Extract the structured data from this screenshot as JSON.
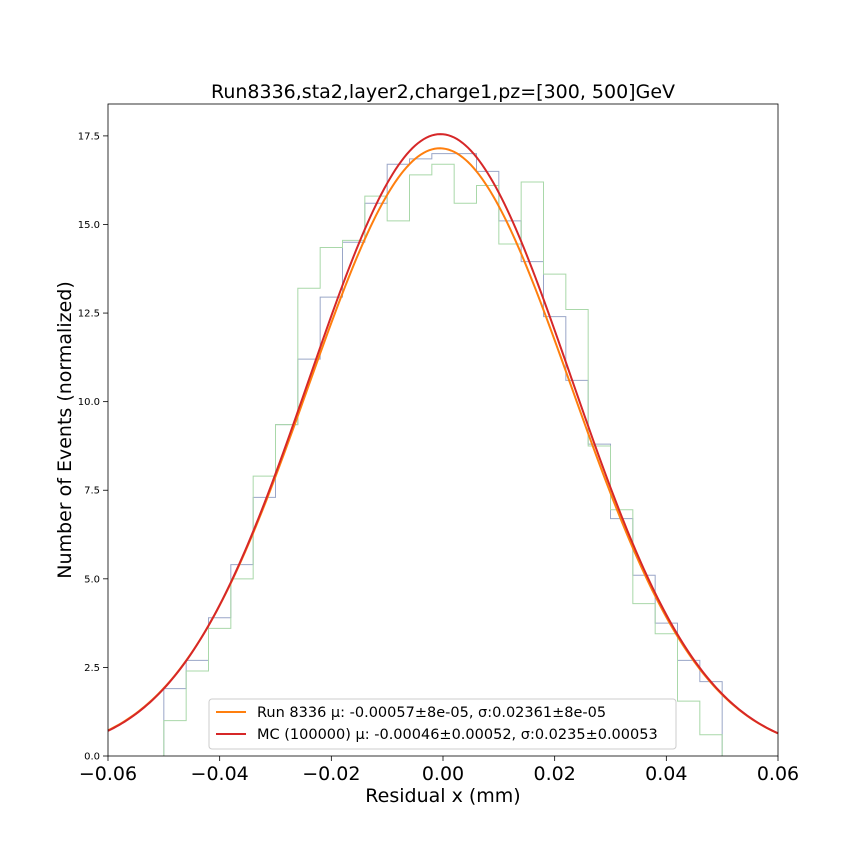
{
  "chart_data": {
    "type": "line",
    "title": "Run8336,sta2,layer2,charge1,pz=[300, 500]GeV",
    "xlabel": "Residual x (mm)",
    "ylabel": "Number of Events (normalized)",
    "xlim": [
      -0.06,
      0.06
    ],
    "ylim": [
      0,
      18.4
    ],
    "xticks": [
      -0.06,
      -0.04,
      -0.02,
      0.0,
      0.02,
      0.04,
      0.06
    ],
    "xtick_labels": [
      "−0.06",
      "−0.04",
      "−0.02",
      "0.00",
      "0.02",
      "0.04",
      "0.06"
    ],
    "yticks": [
      0.0,
      2.5,
      5.0,
      7.5,
      10.0,
      12.5,
      15.0,
      17.5
    ],
    "ytick_labels": [
      "0.0",
      "2.5",
      "5.0",
      "7.5",
      "10.0",
      "12.5",
      "15.0",
      "17.5"
    ],
    "grid": false,
    "legend_position": "lower-center",
    "histogram_bin_edges": [
      -0.05,
      -0.046,
      -0.042,
      -0.038,
      -0.034,
      -0.03,
      -0.026,
      -0.022,
      -0.018,
      -0.014,
      -0.01,
      -0.006,
      -0.002,
      0.002,
      0.006,
      0.01,
      0.014,
      0.018,
      0.022,
      0.026,
      0.03,
      0.034,
      0.038,
      0.042,
      0.046,
      0.05
    ],
    "histograms": [
      {
        "color": "#9aa6c8",
        "values": [
          1.9,
          2.7,
          3.9,
          5.4,
          7.3,
          9.35,
          11.2,
          12.95,
          14.5,
          15.6,
          16.7,
          16.85,
          17.0,
          17.0,
          16.5,
          15.1,
          13.95,
          12.4,
          10.6,
          8.8,
          6.7,
          5.1,
          3.75,
          2.7,
          2.1
        ]
      },
      {
        "color": "#a9d8a9",
        "values": [
          1.0,
          2.4,
          3.6,
          5.0,
          7.9,
          9.35,
          13.2,
          14.35,
          14.55,
          15.8,
          15.1,
          16.4,
          16.7,
          15.6,
          16.1,
          14.45,
          16.2,
          13.6,
          12.6,
          8.75,
          6.95,
          4.3,
          3.45,
          1.55,
          0.6
        ]
      }
    ],
    "series": [
      {
        "name": "Run 8336 μ: -0.00057±8e-05, σ:0.02361±8e-05",
        "type": "gaussian",
        "color": "#ff7f0e",
        "amplitude": 17.15,
        "mu": -0.00057,
        "sigma": 0.02361
      },
      {
        "name": "MC (100000) μ: -0.00046±0.00052, σ:0.0235±0.00053",
        "type": "gaussian",
        "color": "#d62728",
        "amplitude": 17.55,
        "mu": -0.00046,
        "sigma": 0.0235
      }
    ]
  }
}
